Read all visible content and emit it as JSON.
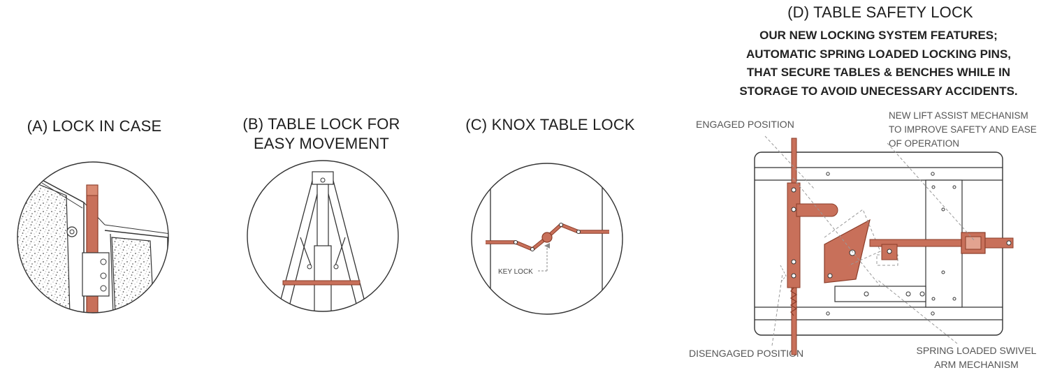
{
  "panels": {
    "a": {
      "title": "(A) LOCK IN CASE"
    },
    "b": {
      "title_line1": "(B) TABLE LOCK FOR",
      "title_line2": "EASY MOVEMENT"
    },
    "c": {
      "title": "(C) KNOX TABLE LOCK",
      "key_lock_label": "KEY LOCK"
    },
    "d": {
      "title": "(D) TABLE SAFETY LOCK",
      "features": [
        "OUR NEW LOCKING SYSTEM FEATURES;",
        "AUTOMATIC SPRING LOADED LOCKING PINS,",
        "THAT SECURE TABLES & BENCHES WHILE IN",
        "STORAGE TO AVOID UNECESSARY ACCIDENTS."
      ],
      "callouts": {
        "engaged": "ENGAGED POSITION",
        "lift_assist": [
          "NEW LIFT ASSIST MECHANISM",
          "TO IMPROVE SAFETY AND EASE",
          "OF OPERATION"
        ],
        "disengaged": "DISENGAGED POSITION",
        "spring_loaded": [
          "SPRING LOADED SWIVEL",
          "ARM MECHANISM"
        ]
      }
    }
  },
  "colors": {
    "copper": "#c8705a",
    "copper_dark": "#8a3c28",
    "line": "#2a2a2a",
    "dashed": "#9a9a9a"
  }
}
